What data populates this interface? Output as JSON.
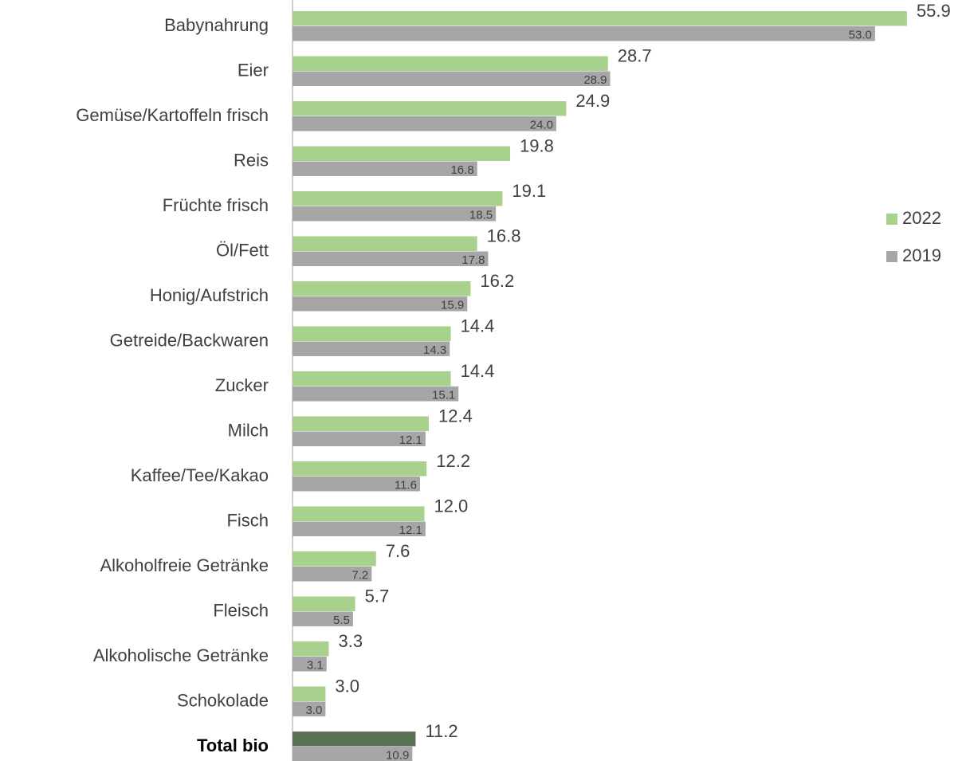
{
  "chart_data": {
    "type": "hbar",
    "categories": [
      "Babynahrung",
      "Eier",
      "Gemüse/Kartoffeln frisch",
      "Reis",
      "Früchte frisch",
      "Öl/Fett",
      "Honig/Aufstrich",
      "Getreide/Backwaren",
      "Zucker",
      "Milch",
      "Kaffee/Tee/Kakao",
      "Fisch",
      "Alkoholfreie Getränke",
      "Fleisch",
      "Alkoholische Getränke",
      "Schokolade",
      "Total bio"
    ],
    "series": [
      {
        "name": "2022",
        "color": "#a9d18e",
        "colors": [
          "#a9d18e",
          "#a9d18e",
          "#a9d18e",
          "#a9d18e",
          "#a9d18e",
          "#a9d18e",
          "#a9d18e",
          "#a9d18e",
          "#a9d18e",
          "#a9d18e",
          "#a9d18e",
          "#a9d18e",
          "#a9d18e",
          "#a9d18e",
          "#a9d18e",
          "#a9d18e",
          "#5b7256"
        ],
        "values": [
          55.9,
          28.7,
          24.9,
          19.8,
          19.1,
          16.8,
          16.2,
          14.4,
          14.4,
          12.4,
          12.2,
          12,
          7.6,
          5.7,
          3.3,
          3,
          11.2
        ],
        "value_labels": [
          "55.9",
          "28.7",
          "24.9",
          "19.8",
          "19.1",
          "16.8",
          "16.2",
          "14.4",
          "14.4",
          "12.4",
          "12.2",
          "12.0",
          "7.6",
          "5.7",
          "3.3",
          "3.0",
          "11.2"
        ]
      },
      {
        "name": "2019",
        "color": "#a6a6a6",
        "values": [
          53,
          28.9,
          24,
          16.8,
          18.5,
          17.8,
          15.9,
          14.3,
          15.1,
          12.1,
          11.6,
          12.1,
          7.2,
          5.5,
          3.1,
          3,
          10.9
        ],
        "value_labels": [
          "53.0",
          "28.9",
          "24.0",
          "16.8",
          "18.5",
          "17.8",
          "15.9",
          "14.3",
          "15.1",
          "12.1",
          "11.6",
          "12.1",
          "7.2",
          "5.5",
          "3.1",
          "3.0",
          "10.9"
        ]
      }
    ],
    "xlim": [
      0,
      60
    ],
    "legend": "right"
  }
}
